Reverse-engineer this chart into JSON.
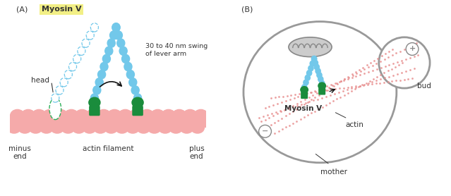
{
  "panel_A_label": "(A)",
  "panel_B_label": "(B)",
  "myosin_v_label": "Myosin V",
  "myosin_v_box_color": "#f2ef85",
  "head_label": "head",
  "minus_end_label": "minus\nend",
  "actin_filament_label": "actin filament",
  "plus_end_label": "plus\nend",
  "swing_label": "30 to 40 nm swing\nof lever arm",
  "actin_color": "#f5aaaa",
  "blue_bead_color": "#72c8ea",
  "green_head_color": "#1a8c3c",
  "dashed_bead_color": "#72c8ea",
  "dashed_head_color": "#1a9050",
  "cell_outline_color": "#999999",
  "cell_fill_color": "#ffffff",
  "mito_fill_color": "#cccccc",
  "mito_edge_color": "#888888",
  "actin_dot_color": "#e89090",
  "circle_color": "#888888",
  "arrow_color": "#111111",
  "bud_label": "bud",
  "mother_label": "mother",
  "myosin_v_b_label": "Myosin V",
  "actin_b_label": "actin",
  "text_color": "#333333",
  "bg_color": "#ffffff"
}
